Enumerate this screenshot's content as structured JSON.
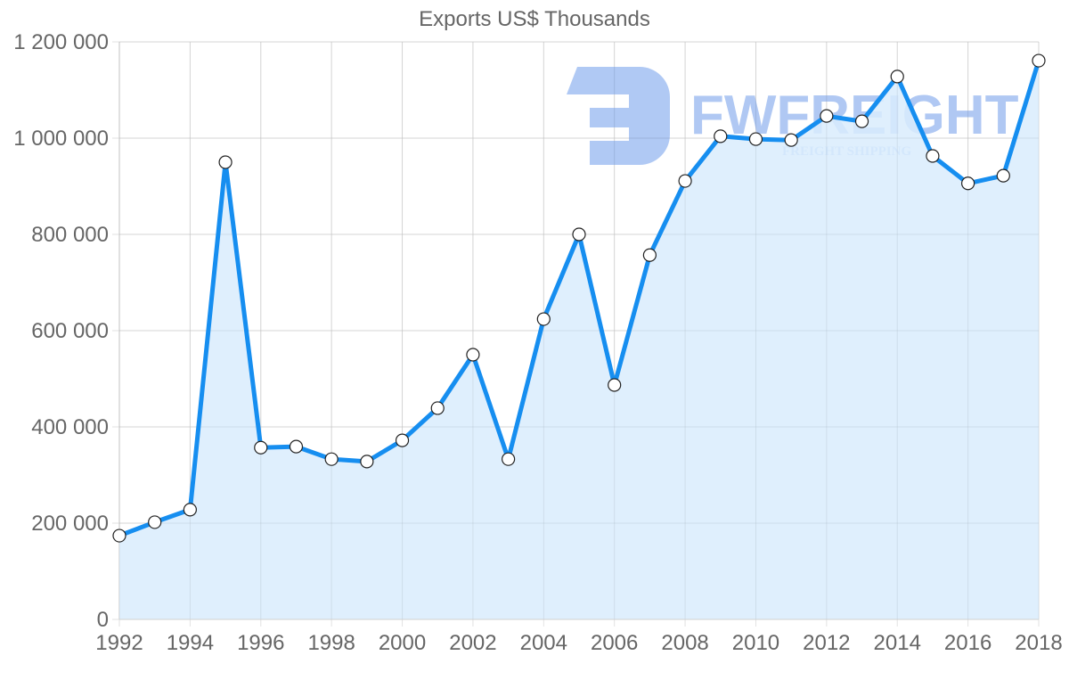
{
  "chart_data": {
    "type": "area",
    "title": "Exports US$ Thousands",
    "xlabel": "",
    "ylabel": "",
    "x": [
      1992,
      1993,
      1994,
      1995,
      1996,
      1997,
      1998,
      1999,
      2000,
      2001,
      2002,
      2003,
      2004,
      2005,
      2006,
      2007,
      2008,
      2009,
      2010,
      2011,
      2012,
      2013,
      2014,
      2015,
      2016,
      2017,
      2018
    ],
    "series": [
      {
        "name": "Exports US$ Thousands",
        "color": "#168ef0",
        "fill": "#d9ecfd",
        "values": [
          174000,
          202000,
          228000,
          950000,
          357000,
          359000,
          333000,
          328000,
          372000,
          439000,
          550000,
          333000,
          624000,
          800000,
          487000,
          757000,
          911000,
          1004000,
          998000,
          996000,
          1046000,
          1035000,
          1128000,
          963000,
          906000,
          922000,
          1161000
        ]
      }
    ],
    "xticks": [
      "1992",
      "1994",
      "1996",
      "1998",
      "2000",
      "2002",
      "2004",
      "2006",
      "2008",
      "2010",
      "2012",
      "2014",
      "2016",
      "2018"
    ],
    "yticks": [
      "0",
      "200 000",
      "400 000",
      "600 000",
      "800 000",
      "1 000 000",
      "1 200 000"
    ],
    "ylim": [
      0,
      1200000
    ],
    "xlim": [
      1992,
      2018
    ],
    "grid": true,
    "legend": "none"
  },
  "watermark": {
    "brand": "FWFREIGHT",
    "tagline": "FREIGHT SHIPPING",
    "color": "#8fb2ef"
  }
}
